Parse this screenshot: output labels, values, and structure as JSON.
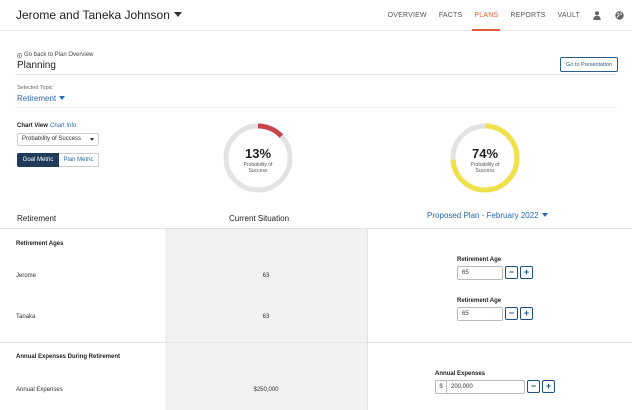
{
  "header": {
    "client_name": "Jerome and Taneka Johnson",
    "nav": [
      {
        "label": "OVERVIEW",
        "active": false
      },
      {
        "label": "FACTS",
        "active": false
      },
      {
        "label": "PLANS",
        "active": true
      },
      {
        "label": "REPORTS",
        "active": false
      },
      {
        "label": "VAULT",
        "active": false
      }
    ],
    "icons": [
      "user-icon",
      "globe-icon"
    ],
    "accent_color": "#e15f3a"
  },
  "page": {
    "back_link": "Go back to Plan Overview",
    "title": "Planning",
    "presentation_button": "Go to Presentation",
    "selected_topic_label": "Selected Topic",
    "selected_topic_value": "Retirement"
  },
  "chart_controls": {
    "chart_view_label": "Chart View",
    "chart_info_link": "Chart Info",
    "metric_select_value": "Probability of Success",
    "goal_metric_label": "Goal Metric",
    "plan_metric_label": "Plan Metric"
  },
  "gauges": {
    "current": {
      "percent_text": "13%",
      "value": 0.13,
      "sub_line1": "Probability of",
      "sub_line2": "Success",
      "color": "#c9464a"
    },
    "proposed": {
      "percent_text": "74%",
      "value": 0.74,
      "sub_line1": "Probability of",
      "sub_line2": "Success",
      "color": "#f0e04a"
    }
  },
  "columns": {
    "left": "Retirement",
    "middle": "Current Situation",
    "right": "Proposed Plan - February 2022"
  },
  "retirement_ages": {
    "section_title": "Retirement Ages",
    "rows": [
      {
        "label": "Jerome",
        "current": "63",
        "field_label": "Retirement Age",
        "proposed": "65"
      },
      {
        "label": "Tanaka",
        "current": "63",
        "field_label": "Retirement Age",
        "proposed": "65"
      }
    ]
  },
  "annual_expenses": {
    "section_title": "Annual Expenses During Retirement",
    "row_label": "Annual Expenses",
    "current": "$250,000",
    "field_label": "Annual Expenses",
    "currency": "$",
    "proposed": "200,000"
  },
  "stepper": {
    "minus": "−",
    "plus": "+"
  }
}
